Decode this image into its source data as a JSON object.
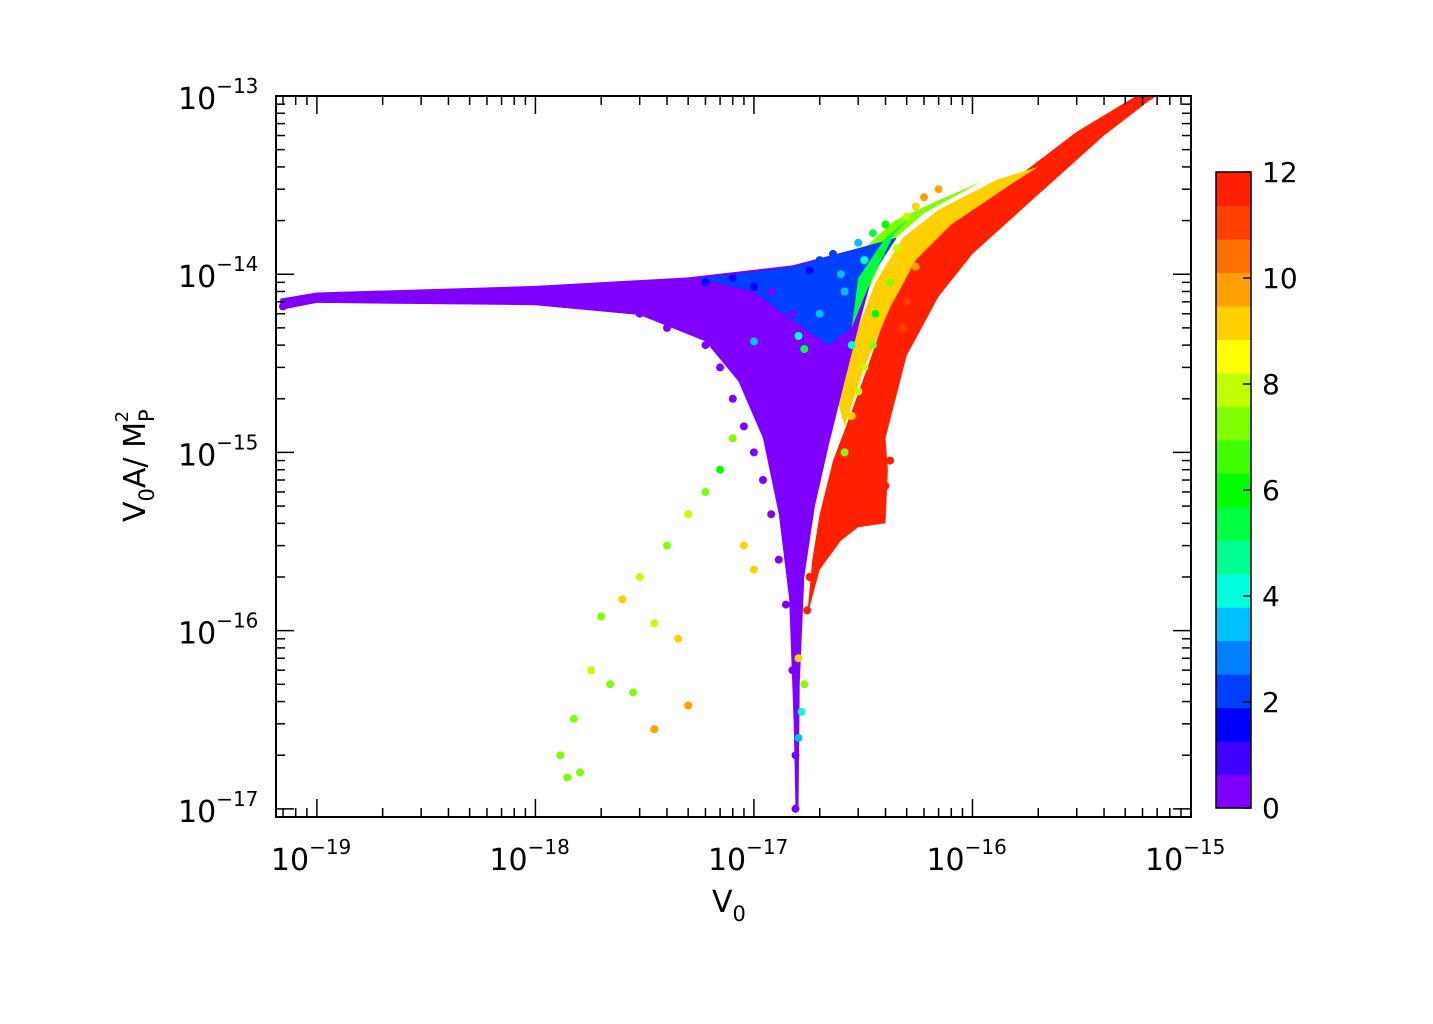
{
  "chart_data": {
    "type": "scatter",
    "title": "",
    "xlabel": "V",
    "xlabel_sub": "0",
    "ylabel_parts": {
      "v": "V",
      "sub0": "0",
      "mid": "A/ M",
      "subP": "P",
      "sup": "2"
    },
    "x_scale": "log",
    "y_scale": "log",
    "xlim": [
      6.5e-20,
      1e-15
    ],
    "ylim": [
      9e-18,
      1e-13
    ],
    "x_ticks": [
      {
        "value": 1e-19,
        "base": "10",
        "exp": "−19"
      },
      {
        "value": 1e-18,
        "base": "10",
        "exp": "−18"
      },
      {
        "value": 1e-17,
        "base": "10",
        "exp": "−17"
      },
      {
        "value": 1e-16,
        "base": "10",
        "exp": "−16"
      },
      {
        "value": 1e-15,
        "base": "10",
        "exp": "−15"
      }
    ],
    "y_ticks": [
      {
        "value": 1e-13,
        "base": "10",
        "exp": "−13"
      },
      {
        "value": 1e-14,
        "base": "10",
        "exp": "−14"
      },
      {
        "value": 1e-15,
        "base": "10",
        "exp": "−15"
      },
      {
        "value": 1e-16,
        "base": "10",
        "exp": "−16"
      },
      {
        "value": 1e-17,
        "base": "10",
        "exp": "−17"
      }
    ],
    "colorbar": {
      "range": [
        0,
        12
      ],
      "tick_labels": [
        "0",
        "2",
        "4",
        "6",
        "8",
        "10",
        "12"
      ],
      "tick_values": [
        0,
        2,
        4,
        6,
        8,
        10,
        12
      ],
      "colors": [
        "#7f00ff",
        "#3f00ff",
        "#0000ff",
        "#0040ff",
        "#0080ff",
        "#00c0ff",
        "#00ffe0",
        "#00ff90",
        "#00ff40",
        "#00ff00",
        "#40ff00",
        "#80ff00",
        "#c0ff00",
        "#ffff00",
        "#ffd000",
        "#ffa000",
        "#ff7000",
        "#ff4000",
        "#ff2000"
      ]
    },
    "points": [
      {
        "x": 7e-20,
        "y": 6.6e-15,
        "c": 0
      },
      {
        "x": 1e-19,
        "y": 7.4e-15,
        "c": 0
      },
      {
        "x": 2e-19,
        "y": 7.2e-15,
        "c": 0
      },
      {
        "x": 5e-19,
        "y": 7.3e-15,
        "c": 0
      },
      {
        "x": 1e-18,
        "y": 7.6e-15,
        "c": 0
      },
      {
        "x": 2e-18,
        "y": 8e-15,
        "c": 0
      },
      {
        "x": 3e-18,
        "y": 6e-15,
        "c": 0
      },
      {
        "x": 4e-18,
        "y": 5e-15,
        "c": 0
      },
      {
        "x": 5e-18,
        "y": 8.5e-15,
        "c": 0
      },
      {
        "x": 6e-18,
        "y": 4e-15,
        "c": 0
      },
      {
        "x": 7e-18,
        "y": 3e-15,
        "c": 0
      },
      {
        "x": 8e-18,
        "y": 2e-15,
        "c": 0
      },
      {
        "x": 9e-18,
        "y": 1.4e-15,
        "c": 0
      },
      {
        "x": 1e-17,
        "y": 1e-15,
        "c": 0
      },
      {
        "x": 1.1e-17,
        "y": 7e-16,
        "c": 0
      },
      {
        "x": 1.2e-17,
        "y": 4.5e-16,
        "c": 0
      },
      {
        "x": 1.3e-17,
        "y": 2.5e-16,
        "c": 0
      },
      {
        "x": 1.4e-17,
        "y": 1.4e-16,
        "c": 0
      },
      {
        "x": 1.5e-17,
        "y": 6e-17,
        "c": 0
      },
      {
        "x": 1.55e-17,
        "y": 2e-17,
        "c": 0
      },
      {
        "x": 1.55e-17,
        "y": 1e-17,
        "c": 0
      },
      {
        "x": 1.6e-17,
        "y": 3.5e-16,
        "c": 0
      },
      {
        "x": 1.8e-17,
        "y": 1.5e-15,
        "c": 0
      },
      {
        "x": 2e-17,
        "y": 3e-15,
        "c": 0
      },
      {
        "x": 1.5e-17,
        "y": 6e-15,
        "c": 0
      },
      {
        "x": 1.2e-17,
        "y": 8e-15,
        "c": 0
      },
      {
        "x": 6e-18,
        "y": 9e-15,
        "c": 1
      },
      {
        "x": 8e-18,
        "y": 9.5e-15,
        "c": 1
      },
      {
        "x": 1e-17,
        "y": 8.5e-15,
        "c": 1
      },
      {
        "x": 1.3e-17,
        "y": 7e-15,
        "c": 2
      },
      {
        "x": 1.6e-17,
        "y": 9e-15,
        "c": 2
      },
      {
        "x": 1.8e-17,
        "y": 1.05e-14,
        "c": 1
      },
      {
        "x": 2e-17,
        "y": 1.2e-14,
        "c": 2
      },
      {
        "x": 2.3e-17,
        "y": 1.3e-14,
        "c": 2
      },
      {
        "x": 2.5e-17,
        "y": 1e-14,
        "c": 3
      },
      {
        "x": 2.6e-17,
        "y": 8e-15,
        "c": 3
      },
      {
        "x": 2e-17,
        "y": 6e-15,
        "c": 3
      },
      {
        "x": 1.6e-17,
        "y": 4.5e-15,
        "c": 4
      },
      {
        "x": 1.7e-17,
        "y": 3.8e-15,
        "c": 5
      },
      {
        "x": 1e-17,
        "y": 4.2e-15,
        "c": 3
      },
      {
        "x": 2.8e-17,
        "y": 4e-15,
        "c": 4
      },
      {
        "x": 3e-17,
        "y": 1.5e-14,
        "c": 3
      },
      {
        "x": 3.2e-17,
        "y": 1.2e-14,
        "c": 4
      },
      {
        "x": 3.3e-17,
        "y": 9e-15,
        "c": 5
      },
      {
        "x": 3.5e-17,
        "y": 1.7e-14,
        "c": 5
      },
      {
        "x": 3.6e-17,
        "y": 6e-15,
        "c": 6
      },
      {
        "x": 3.8e-17,
        "y": 1.3e-14,
        "c": 6
      },
      {
        "x": 4e-17,
        "y": 1.9e-14,
        "c": 6
      },
      {
        "x": 4.2e-17,
        "y": 9e-15,
        "c": 7
      },
      {
        "x": 3.5e-17,
        "y": 4e-15,
        "c": 7
      },
      {
        "x": 3.2e-17,
        "y": 3e-15,
        "c": 8
      },
      {
        "x": 3e-17,
        "y": 2.2e-15,
        "c": 8
      },
      {
        "x": 2.8e-17,
        "y": 1.6e-15,
        "c": 9
      },
      {
        "x": 2.6e-17,
        "y": 1e-15,
        "c": 7
      },
      {
        "x": 4.5e-17,
        "y": 1.4e-14,
        "c": 8
      },
      {
        "x": 5e-17,
        "y": 2.1e-14,
        "c": 8
      },
      {
        "x": 5.5e-17,
        "y": 2.4e-14,
        "c": 9
      },
      {
        "x": 6e-17,
        "y": 2.7e-14,
        "c": 10
      },
      {
        "x": 7e-17,
        "y": 3e-14,
        "c": 10
      },
      {
        "x": 5.5e-17,
        "y": 1.1e-14,
        "c": 10
      },
      {
        "x": 5e-17,
        "y": 7e-15,
        "c": 11
      },
      {
        "x": 4.8e-17,
        "y": 5e-15,
        "c": 11
      },
      {
        "x": 4.5e-17,
        "y": 3.5e-15,
        "c": 12
      },
      {
        "x": 4e-17,
        "y": 2.5e-15,
        "c": 12
      },
      {
        "x": 3.5e-17,
        "y": 1.8e-15,
        "c": 12
      },
      {
        "x": 3e-17,
        "y": 1.2e-15,
        "c": 12
      },
      {
        "x": 2.6e-17,
        "y": 8e-16,
        "c": 12
      },
      {
        "x": 2.3e-17,
        "y": 5e-16,
        "c": 12
      },
      {
        "x": 2e-17,
        "y": 3e-16,
        "c": 12
      },
      {
        "x": 1.8e-17,
        "y": 2e-16,
        "c": 12
      },
      {
        "x": 1.75e-17,
        "y": 1.3e-16,
        "c": 12
      },
      {
        "x": 3e-17,
        "y": 4.5e-16,
        "c": 12
      },
      {
        "x": 3.5e-17,
        "y": 5e-16,
        "c": 12
      },
      {
        "x": 4e-17,
        "y": 6.5e-16,
        "c": 12
      },
      {
        "x": 4.2e-17,
        "y": 9e-16,
        "c": 12
      },
      {
        "x": 6e-17,
        "y": 6e-15,
        "c": 12
      },
      {
        "x": 8e-17,
        "y": 1e-14,
        "c": 12
      },
      {
        "x": 1e-16,
        "y": 1.5e-14,
        "c": 12
      },
      {
        "x": 1.5e-16,
        "y": 2.5e-14,
        "c": 12
      },
      {
        "x": 2e-16,
        "y": 3.5e-14,
        "c": 12
      },
      {
        "x": 3e-16,
        "y": 5e-14,
        "c": 12
      },
      {
        "x": 4e-16,
        "y": 6.5e-14,
        "c": 12
      },
      {
        "x": 5e-16,
        "y": 8e-14,
        "c": 12
      },
      {
        "x": 6e-16,
        "y": 9.5e-14,
        "c": 12
      },
      {
        "x": 6.5e-16,
        "y": 1e-13,
        "c": 12
      },
      {
        "x": 8e-18,
        "y": 1.2e-15,
        "c": 7
      },
      {
        "x": 7e-18,
        "y": 8e-16,
        "c": 6
      },
      {
        "x": 6e-18,
        "y": 6e-16,
        "c": 7
      },
      {
        "x": 5e-18,
        "y": 4.5e-16,
        "c": 8
      },
      {
        "x": 4e-18,
        "y": 3e-16,
        "c": 7
      },
      {
        "x": 3e-18,
        "y": 2e-16,
        "c": 8
      },
      {
        "x": 2.5e-18,
        "y": 1.5e-16,
        "c": 9
      },
      {
        "x": 2e-18,
        "y": 1.2e-16,
        "c": 7
      },
      {
        "x": 3.5e-18,
        "y": 1.1e-16,
        "c": 8
      },
      {
        "x": 4.5e-18,
        "y": 9e-17,
        "c": 9
      },
      {
        "x": 1.8e-18,
        "y": 6e-17,
        "c": 8
      },
      {
        "x": 2.2e-18,
        "y": 5e-17,
        "c": 7
      },
      {
        "x": 2.8e-18,
        "y": 4.5e-17,
        "c": 7
      },
      {
        "x": 1.5e-18,
        "y": 3.2e-17,
        "c": 7
      },
      {
        "x": 1.3e-18,
        "y": 2e-17,
        "c": 7
      },
      {
        "x": 1.4e-18,
        "y": 1.5e-17,
        "c": 7
      },
      {
        "x": 1.6e-18,
        "y": 1.6e-17,
        "c": 7
      },
      {
        "x": 3.5e-18,
        "y": 2.8e-17,
        "c": 10
      },
      {
        "x": 5e-18,
        "y": 3.8e-17,
        "c": 10
      },
      {
        "x": 9e-18,
        "y": 3e-16,
        "c": 9
      },
      {
        "x": 1e-17,
        "y": 2.2e-16,
        "c": 9
      },
      {
        "x": 1.6e-17,
        "y": 7e-17,
        "c": 9
      },
      {
        "x": 1.7e-17,
        "y": 5e-17,
        "c": 7
      },
      {
        "x": 1.65e-17,
        "y": 3.5e-17,
        "c": 4
      },
      {
        "x": 1.6e-17,
        "y": 2.5e-17,
        "c": 3
      }
    ]
  }
}
